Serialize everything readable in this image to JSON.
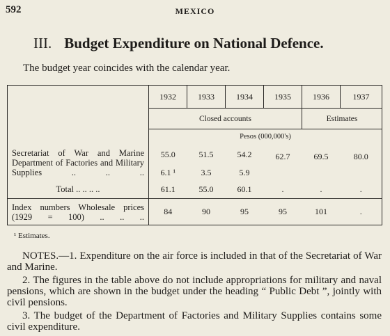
{
  "header": {
    "page_number": "592",
    "running_title": "MEXICO"
  },
  "section": {
    "number": "III.",
    "title": "Budget Expenditure on National Defence."
  },
  "intro": "The budget year coincides with the calendar year.",
  "table": {
    "years": [
      "1932",
      "1933",
      "1934",
      "1935",
      "1936",
      "1937"
    ],
    "groups": [
      "Closed accounts",
      "Estimates"
    ],
    "unit": "Pesos (000,000's)",
    "rows": [
      {
        "label": "Secretariat of War and Marine Department of Factories and Military Supplies .. .. ..",
        "values": [
          "55.0",
          "51.5",
          "54.2",
          "62.7",
          "69.5",
          "80.0"
        ],
        "sub_values": [
          "6.1 ¹",
          "3.5",
          "5.9"
        ]
      },
      {
        "label": "Total .. .. .. ..",
        "values": [
          "61.1",
          "55.0",
          "60.1",
          ".",
          ".",
          "."
        ]
      },
      {
        "label": "Index numbers Wholesale prices (1929 = 100) .. .. ..",
        "values": [
          "84",
          "90",
          "95",
          "95",
          "101",
          "."
        ]
      }
    ]
  },
  "footnote": "¹ Estimates.",
  "notes": [
    "NOTES.—1. Expenditure on the air force is included in that of the Secretariat of War and Marine.",
    "2. The figures in the table above do not include appropriations for military and naval pensions, which are shown in the budget under the heading “ Public Debt ”, jointly with civil pensions.",
    "3. The budget of the Department of Factories and Military Supplies contains some civil expenditure."
  ]
}
